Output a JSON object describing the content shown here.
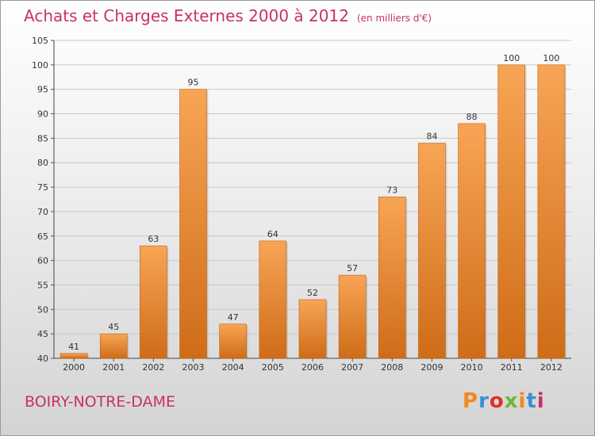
{
  "title": "Achats et Charges Externes 2000 à 2012",
  "unit_note": "(en milliers d'€)",
  "place": "BOIRY-NOTRE-DAME",
  "brand": {
    "letters": [
      "P",
      "r",
      "o",
      "x",
      "i",
      "t",
      "i"
    ],
    "colors": [
      "#f08a1c",
      "#3a8fd0",
      "#e0302a",
      "#6bb82e",
      "#f08a1c",
      "#3a8fd0",
      "#c8306a"
    ]
  },
  "colors": {
    "title": "#c8306a",
    "bar_light": "#f7a555",
    "bar_dark": "#cf6c18",
    "grid": "#c8c8c8"
  },
  "chart_data": {
    "type": "bar",
    "categories": [
      "2000",
      "2001",
      "2002",
      "2003",
      "2004",
      "2005",
      "2006",
      "2007",
      "2008",
      "2009",
      "2010",
      "2011",
      "2012"
    ],
    "values": [
      41,
      45,
      63,
      95,
      47,
      64,
      52,
      57,
      73,
      84,
      88,
      100,
      100
    ],
    "ylim": [
      40,
      105
    ],
    "yticks": [
      40,
      45,
      50,
      55,
      60,
      65,
      70,
      75,
      80,
      85,
      90,
      95,
      100,
      105
    ],
    "grid": true,
    "data_labels": true
  }
}
